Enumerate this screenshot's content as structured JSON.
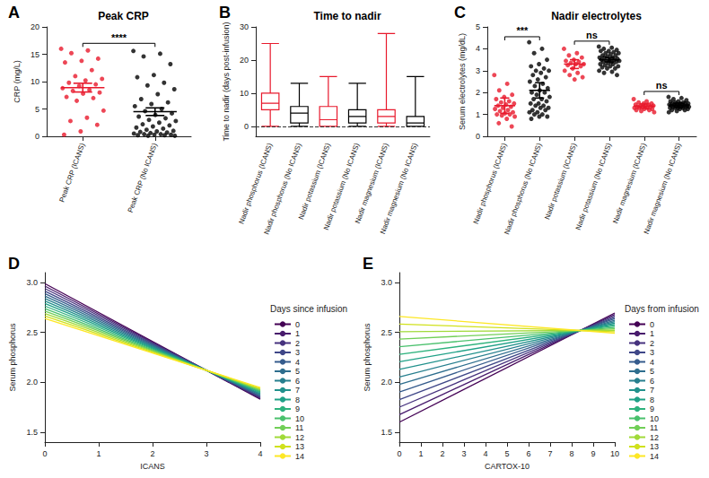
{
  "chart_data": [
    {
      "panel": "A",
      "type": "scatter",
      "title": "Peak CRP",
      "categories": [
        "Peak CRP (ICANS)",
        "Peak CRP (No ICANS)"
      ],
      "colors": [
        "#e8192c",
        "#000000"
      ],
      "values": [
        [
          16.0,
          15.7,
          15.2,
          14.2,
          13.8,
          13.5,
          12.1,
          11.0,
          10.5,
          10.2,
          9.8,
          9.5,
          9.2,
          8.8,
          8.5,
          8.3,
          8.0,
          7.8,
          7.2,
          7.0,
          6.5,
          4.7,
          3.4,
          2.8,
          2.1,
          0.9,
          0.3
        ],
        [
          15.6,
          15.1,
          14.6,
          13.2,
          11.2,
          10.8,
          9.8,
          9.3,
          8.6,
          7.7,
          6.8,
          6.2,
          5.9,
          5.5,
          5.0,
          4.6,
          4.2,
          3.9,
          3.6,
          3.3,
          3.0,
          2.8,
          2.5,
          2.2,
          2.0,
          1.8,
          1.6,
          1.4,
          1.2,
          1.0,
          0.9,
          0.8,
          0.7,
          0.6,
          0.5,
          0.4,
          0.4,
          0.3,
          0.3,
          0.2,
          0.2,
          0.1,
          0.1
        ]
      ],
      "means": [
        8.9,
        4.5
      ],
      "errors": [
        0.8,
        0.7
      ],
      "ylabel": "CRP (mg/L)",
      "ylim": [
        0,
        20
      ],
      "yticks": [
        0,
        5,
        10,
        15,
        20
      ],
      "grid": false,
      "annotations": [
        {
          "text": "****",
          "groups": [
            0,
            1
          ]
        }
      ]
    },
    {
      "panel": "B",
      "type": "boxplot",
      "title": "Time to nadir",
      "categories": [
        "Nadir phosphorus (ICANS)",
        "Nadir phosphorus (No ICANS)",
        "Nadir potassium (ICANS)",
        "Nadir potassium (No ICANS)",
        "Nadir magnesium (ICANS)",
        "Nadir magnesium (No ICANS)"
      ],
      "colors": [
        "#e8192c",
        "#000000",
        "#e8192c",
        "#000000",
        "#e8192c",
        "#000000"
      ],
      "values": [
        [
          0,
          5,
          7,
          10,
          25
        ],
        [
          0,
          1,
          4,
          6,
          13
        ],
        [
          0,
          0,
          2,
          6,
          15
        ],
        [
          0,
          1,
          3,
          5,
          13
        ],
        [
          0,
          1,
          3,
          5,
          28
        ],
        [
          0,
          0,
          1,
          3,
          15
        ]
      ],
      "ylabel": "Time to nadir (days post-infusion)",
      "ylim": [
        -3,
        30
      ],
      "yticks": [
        0,
        10,
        20,
        30
      ],
      "grid": false,
      "reference_line": 0
    },
    {
      "panel": "C",
      "type": "scatter",
      "title": "Nadir electrolytes",
      "categories": [
        "Nadir phosphorus (ICANS)",
        "Nadir phosphorus (No ICANS)",
        "Nadir potassium (ICANS)",
        "Nadir potassium (No ICANS)",
        "Nadir magnesium (ICANS)",
        "Nadir magnesium (No ICANS)"
      ],
      "colors": [
        "#e8192c",
        "#000000",
        "#e8192c",
        "#000000",
        "#e8192c",
        "#000000"
      ],
      "values": [
        [
          2.8,
          2.4,
          2.1,
          1.9,
          1.8,
          1.7,
          1.6,
          1.55,
          1.5,
          1.45,
          1.4,
          1.35,
          1.3,
          1.25,
          1.2,
          1.15,
          1.1,
          1.05,
          1.0,
          1.0,
          0.95,
          0.9,
          0.8,
          0.6,
          0.45
        ],
        [
          4.3,
          4.0,
          3.8,
          3.5,
          3.3,
          3.2,
          3.1,
          3.0,
          3.0,
          2.9,
          2.8,
          2.7,
          2.6,
          2.5,
          2.4,
          2.3,
          2.2,
          2.1,
          2.0,
          2.0,
          1.9,
          1.8,
          1.7,
          1.7,
          1.6,
          1.5,
          1.5,
          1.4,
          1.4,
          1.3,
          1.3,
          1.2,
          1.2,
          1.1,
          1.1,
          1.0,
          1.0,
          0.9,
          0.9,
          0.8
        ],
        [
          4.0,
          3.8,
          3.7,
          3.6,
          3.5,
          3.45,
          3.4,
          3.35,
          3.3,
          3.3,
          3.25,
          3.2,
          3.1,
          3.0,
          2.9,
          2.8,
          2.7,
          2.6
        ],
        [
          4.1,
          4.05,
          4.0,
          3.95,
          3.9,
          3.9,
          3.85,
          3.8,
          3.8,
          3.75,
          3.7,
          3.7,
          3.65,
          3.6,
          3.6,
          3.6,
          3.55,
          3.5,
          3.5,
          3.5,
          3.45,
          3.45,
          3.4,
          3.4,
          3.4,
          3.35,
          3.3,
          3.3,
          3.25,
          3.2,
          3.2,
          3.15,
          3.1,
          3.1,
          3.0,
          2.95,
          2.9,
          2.8
        ],
        [
          1.7,
          1.6,
          1.55,
          1.5,
          1.5,
          1.45,
          1.45,
          1.4,
          1.4,
          1.4,
          1.35,
          1.35,
          1.35,
          1.3,
          1.3,
          1.3,
          1.25,
          1.25,
          1.2,
          1.2,
          1.15,
          1.1
        ],
        [
          1.8,
          1.75,
          1.7,
          1.65,
          1.6,
          1.6,
          1.55,
          1.55,
          1.5,
          1.5,
          1.5,
          1.5,
          1.45,
          1.45,
          1.45,
          1.45,
          1.4,
          1.4,
          1.4,
          1.4,
          1.4,
          1.35,
          1.35,
          1.35,
          1.35,
          1.3,
          1.3,
          1.3,
          1.3,
          1.25,
          1.25,
          1.2,
          1.2,
          1.15,
          1.1
        ]
      ],
      "means": [
        1.4,
        2.1,
        3.3,
        3.5,
        1.38,
        1.42
      ],
      "errors": [
        0.35,
        0.35,
        0.2,
        0.1,
        0.1,
        0.1
      ],
      "ylabel": "Serum electrolytes (mg/dL)",
      "ylim": [
        0,
        5
      ],
      "yticks": [
        0,
        1,
        2,
        3,
        4,
        5
      ],
      "grid": false,
      "annotations": [
        {
          "text": "***",
          "groups": [
            0,
            1
          ]
        },
        {
          "text": "ns",
          "groups": [
            2,
            3
          ]
        },
        {
          "text": "ns",
          "groups": [
            4,
            5
          ]
        }
      ]
    },
    {
      "panel": "D",
      "type": "line",
      "xlabel": "ICANS",
      "ylabel": "Serum phosphorus",
      "legend": "right",
      "legend_title": "Days since infusion",
      "x": [
        0,
        4
      ],
      "series": [
        {
          "name": "0",
          "color": "#440154",
          "values": [
            2.99,
            1.83
          ]
        },
        {
          "name": "1",
          "color": "#481b6d",
          "values": [
            2.965,
            1.838
          ]
        },
        {
          "name": "2",
          "color": "#46327e",
          "values": [
            2.94,
            1.847
          ]
        },
        {
          "name": "3",
          "color": "#3f4788",
          "values": [
            2.915,
            1.855
          ]
        },
        {
          "name": "4",
          "color": "#365c8d",
          "values": [
            2.89,
            1.863
          ]
        },
        {
          "name": "5",
          "color": "#2e6e8e",
          "values": [
            2.865,
            1.872
          ]
        },
        {
          "name": "6",
          "color": "#277f8e",
          "values": [
            2.84,
            1.88
          ]
        },
        {
          "name": "7",
          "color": "#21918c",
          "values": [
            2.815,
            1.888
          ]
        },
        {
          "name": "8",
          "color": "#1fa187",
          "values": [
            2.79,
            1.897
          ]
        },
        {
          "name": "9",
          "color": "#2db27d",
          "values": [
            2.765,
            1.905
          ]
        },
        {
          "name": "10",
          "color": "#4ac16d",
          "values": [
            2.74,
            1.913
          ]
        },
        {
          "name": "11",
          "color": "#71cf57",
          "values": [
            2.715,
            1.922
          ]
        },
        {
          "name": "12",
          "color": "#a0da39",
          "values": [
            2.69,
            1.93
          ]
        },
        {
          "name": "13",
          "color": "#d0e11c",
          "values": [
            2.665,
            1.938
          ]
        },
        {
          "name": "14",
          "color": "#fde725",
          "values": [
            2.64,
            1.947
          ]
        }
      ],
      "xlim": [
        0,
        4
      ],
      "xticks": [
        0,
        1,
        2,
        3,
        4
      ],
      "ylim": [
        1.4,
        3.1
      ],
      "yticks": [
        1.5,
        {
          "value": 2,
          "label": "2.0"
        },
        2.5,
        {
          "value": 3,
          "label": "3.0"
        }
      ],
      "grid": false
    },
    {
      "panel": "E",
      "type": "line",
      "xlabel": "CARTOX-10",
      "ylabel": "Serum phosphorus",
      "legend": "right",
      "legend_title": "Days from infusion",
      "x": [
        0,
        10
      ],
      "series": [
        {
          "name": "0",
          "color": "#440154",
          "values": [
            1.6,
            2.695
          ]
        },
        {
          "name": "1",
          "color": "#481b6d",
          "values": [
            1.676,
            2.681
          ]
        },
        {
          "name": "2",
          "color": "#46327e",
          "values": [
            1.751,
            2.666
          ]
        },
        {
          "name": "3",
          "color": "#3f4788",
          "values": [
            1.827,
            2.652
          ]
        },
        {
          "name": "4",
          "color": "#365c8d",
          "values": [
            1.903,
            2.638
          ]
        },
        {
          "name": "5",
          "color": "#2e6e8e",
          "values": [
            1.979,
            2.623
          ]
        },
        {
          "name": "6",
          "color": "#277f8e",
          "values": [
            2.054,
            2.609
          ]
        },
        {
          "name": "7",
          "color": "#21918c",
          "values": [
            2.13,
            2.594
          ]
        },
        {
          "name": "8",
          "color": "#1fa187",
          "values": [
            2.206,
            2.58
          ]
        },
        {
          "name": "9",
          "color": "#2db27d",
          "values": [
            2.281,
            2.566
          ]
        },
        {
          "name": "10",
          "color": "#4ac16d",
          "values": [
            2.357,
            2.551
          ]
        },
        {
          "name": "11",
          "color": "#71cf57",
          "values": [
            2.433,
            2.537
          ]
        },
        {
          "name": "12",
          "color": "#a0da39",
          "values": [
            2.508,
            2.522
          ]
        },
        {
          "name": "13",
          "color": "#d0e11c",
          "values": [
            2.584,
            2.508
          ]
        },
        {
          "name": "14",
          "color": "#fde725",
          "values": [
            2.66,
            2.493
          ]
        }
      ],
      "xlim": [
        0,
        10
      ],
      "xticks": [
        0,
        1,
        2,
        3,
        4,
        5,
        6,
        7,
        8,
        9,
        10
      ],
      "ylim": [
        1.4,
        3.1
      ],
      "yticks": [
        1.5,
        {
          "value": 2,
          "label": "2.0"
        },
        2.5,
        {
          "value": 3,
          "label": "3.0"
        }
      ],
      "grid": false
    }
  ]
}
